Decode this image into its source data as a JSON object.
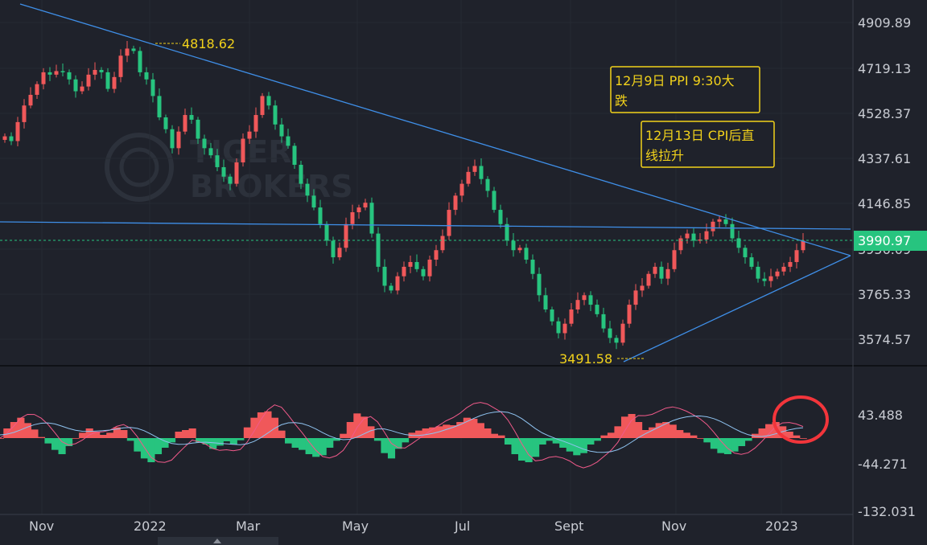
{
  "watermark": {
    "line1": "TIGER",
    "line2": "BROKERS"
  },
  "price_axis": {
    "ticks": [
      "4909.89",
      "4719.13",
      "4528.37",
      "4337.61",
      "4146.85",
      "3956.09",
      "3765.33",
      "3574.57"
    ],
    "last_price": "3990.97"
  },
  "macd_axis": {
    "ticks": [
      "43.488",
      "-44.271",
      "-132.031"
    ]
  },
  "x_axis": {
    "ticks": [
      "Nov",
      "2022",
      "Mar",
      "May",
      "Jul",
      "Sept",
      "Nov",
      "2023"
    ]
  },
  "annotations": {
    "high_label": "4818.62",
    "low_label": "3491.58",
    "box1": [
      "12月9日 PPI 9:30大",
      "跌"
    ],
    "box2": [
      "12月13日 CPI后直",
      "线拉升"
    ]
  },
  "colors": {
    "background": "#1f222b",
    "up": "#f0585a",
    "down": "#27c47f",
    "trendline": "#3f8fe8",
    "annotation": "#f2d21b",
    "highlight_circle": "#f2353b",
    "macd_line": "#8fc3f0",
    "signal_line": "#f05a8a"
  },
  "chart_data": [
    {
      "type": "candlestick",
      "title": "",
      "x_range": [
        "2021-10",
        "2023-01"
      ],
      "y_range": [
        3500,
        4950
      ],
      "yticks": [
        4909.89,
        4719.13,
        4528.37,
        4337.61,
        4146.85,
        3956.09,
        3765.33,
        3574.57
      ],
      "closes": [
        4430,
        4410,
        4490,
        4560,
        4605,
        4650,
        4700,
        4690,
        4705,
        4700,
        4670,
        4620,
        4640,
        4690,
        4710,
        4700,
        4630,
        4680,
        4770,
        4800,
        4790,
        4700,
        4670,
        4600,
        4510,
        4460,
        4380,
        4450,
        4520,
        4500,
        4420,
        4380,
        4350,
        4300,
        4260,
        4230,
        4320,
        4420,
        4450,
        4520,
        4600,
        4560,
        4480,
        4430,
        4390,
        4310,
        4230,
        4180,
        4130,
        4060,
        3990,
        3920,
        3960,
        4060,
        4110,
        4130,
        4150,
        4020,
        3880,
        3800,
        3780,
        3840,
        3880,
        3900,
        3870,
        3840,
        3910,
        3950,
        4010,
        4120,
        4180,
        4230,
        4280,
        4305,
        4250,
        4200,
        4120,
        4060,
        3990,
        3950,
        3960,
        3910,
        3850,
        3760,
        3700,
        3650,
        3600,
        3640,
        3700,
        3740,
        3760,
        3720,
        3680,
        3620,
        3580,
        3560,
        3640,
        3720,
        3780,
        3800,
        3850,
        3880,
        3830,
        3870,
        3950,
        4000,
        4020,
        3990,
        3995,
        4030,
        4070,
        4080,
        4060,
        4000,
        3960,
        3920,
        3880,
        3830,
        3820,
        3840,
        3860,
        3880,
        3900,
        3950,
        3990
      ],
      "high": 4818.62,
      "low": 3491.58,
      "last": 3990.97,
      "annotations": [
        "4818.62",
        "3491.58",
        "12月9日 PPI 9:30大跌",
        "12月13日 CPI后直线拉升"
      ]
    },
    {
      "type": "bar",
      "title": "",
      "yticks": [
        43.488,
        -44.271,
        -132.031
      ],
      "histogram": [
        0,
        18,
        30,
        38,
        28,
        16,
        2,
        -10,
        -22,
        -30,
        -15,
        0,
        10,
        18,
        12,
        6,
        10,
        20,
        15,
        -5,
        -25,
        -38,
        -45,
        -30,
        -18,
        -8,
        12,
        15,
        18,
        -8,
        -12,
        -20,
        -14,
        -6,
        -12,
        -4,
        20,
        38,
        48,
        50,
        38,
        14,
        -10,
        -18,
        -22,
        -30,
        -35,
        -32,
        -18,
        -5,
        8,
        30,
        46,
        40,
        22,
        -5,
        -28,
        -38,
        -20,
        -8,
        10,
        14,
        18,
        20,
        22,
        25,
        24,
        30,
        38,
        36,
        28,
        18,
        8,
        5,
        -12,
        -30,
        -42,
        -45,
        -35,
        -12,
        -5,
        -10,
        -18,
        -25,
        -32,
        -28,
        -12,
        -5,
        5,
        10,
        22,
        40,
        45,
        30,
        15,
        20,
        28,
        30,
        25,
        15,
        10,
        5,
        0,
        -8,
        -20,
        -28,
        -30,
        -25,
        -15,
        -5,
        8,
        18,
        26,
        30,
        22,
        12,
        5,
        0
      ]
    }
  ]
}
